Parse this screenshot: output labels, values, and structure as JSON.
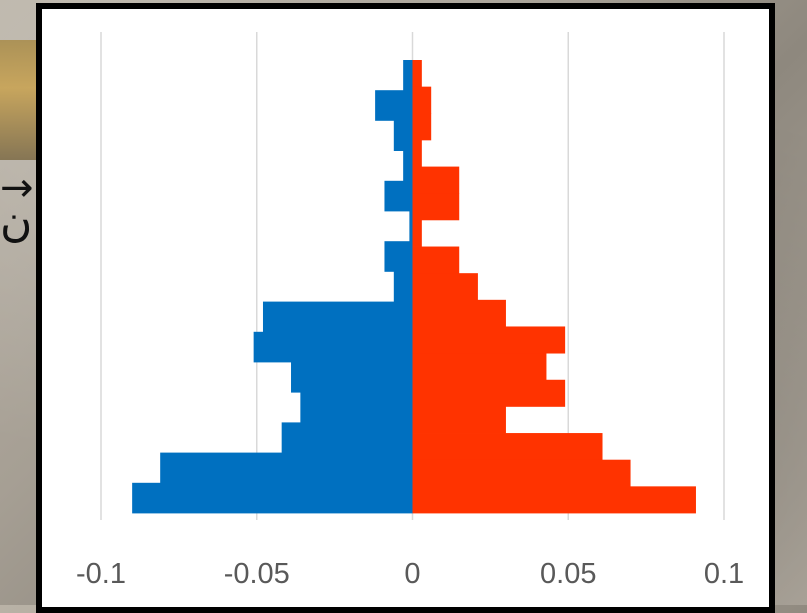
{
  "chart_data": {
    "type": "bar",
    "orientation": "horizontal",
    "xlim": [
      -0.1,
      0.1
    ],
    "x_ticks": [
      "-0.1",
      "-0.05",
      "0",
      "0.05",
      "0.1"
    ],
    "x_tick_values": [
      -0.1,
      -0.05,
      0,
      0.05,
      0.1
    ],
    "grid": "vertical",
    "legend": "none",
    "series": [
      {
        "color": "#0070C0",
        "values": [
          -0.003,
          -0.012,
          -0.006,
          -0.003,
          -0.009,
          -0.001,
          -0.009,
          -0.006,
          -0.048,
          -0.051,
          -0.039,
          -0.036,
          -0.042,
          -0.081,
          -0.09
        ]
      },
      {
        "color": "#FF3300",
        "values": [
          0.003,
          0.006,
          0.006,
          0.003,
          0.015,
          0.015,
          0.003,
          0.015,
          0.021,
          0.03,
          0.049,
          0.043,
          0.049,
          0.03,
          0.061,
          0.07,
          0.091
        ]
      }
    ]
  }
}
